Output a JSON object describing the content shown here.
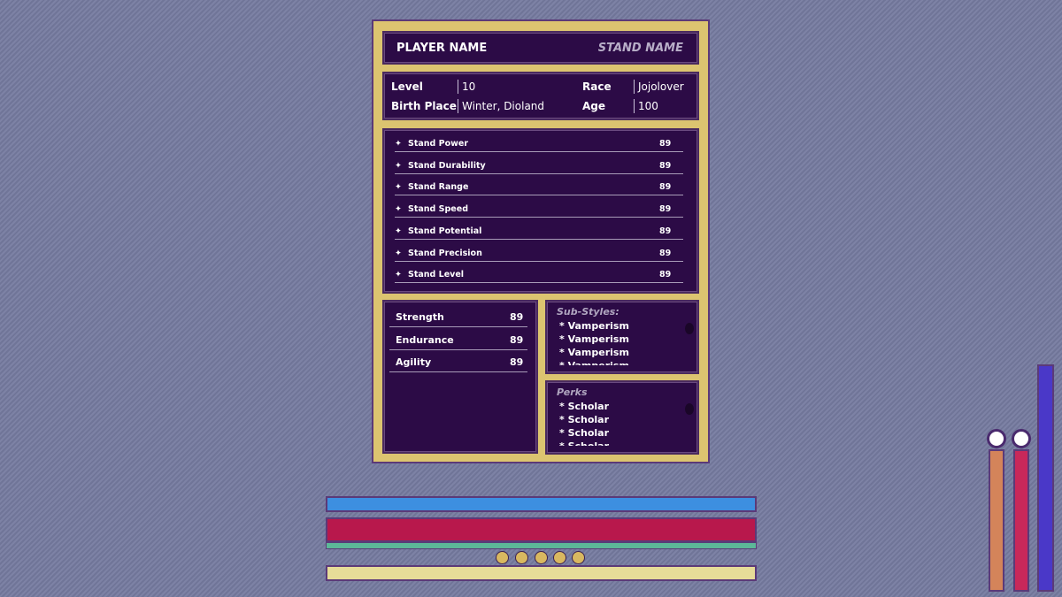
{
  "header": {
    "player_name": "PLAYER NAME",
    "stand_name": "STAND NAME"
  },
  "info": [
    {
      "label": "Level",
      "value": "10"
    },
    {
      "label": "Race",
      "value": "Jojolover"
    },
    {
      "label": "Birth Place",
      "value": "Winter, Dioland"
    },
    {
      "label": "Age",
      "value": "100"
    }
  ],
  "stand_stats": [
    {
      "name": "Stand Power",
      "value": 89
    },
    {
      "name": "Stand Durability",
      "value": 89
    },
    {
      "name": "Stand Range",
      "value": 89
    },
    {
      "name": "Stand Speed",
      "value": 89
    },
    {
      "name": "Stand Potential",
      "value": 89
    },
    {
      "name": "Stand Precision",
      "value": 89
    },
    {
      "name": "Stand Level",
      "value": 89
    }
  ],
  "stats": [
    {
      "name": "Strength",
      "value": 89
    },
    {
      "name": "Endurance",
      "value": 89
    },
    {
      "name": "Agility",
      "value": 89
    }
  ],
  "sub_styles": {
    "title": "Sub-Styles:",
    "items": [
      "* Vamperism",
      "* Vamperism",
      "* Vamperism",
      "* Vamperism"
    ]
  },
  "perks": {
    "title": "Perks",
    "items": [
      "* Scholar",
      "* Scholar",
      "* Scholar",
      "* Scholar"
    ]
  }
}
